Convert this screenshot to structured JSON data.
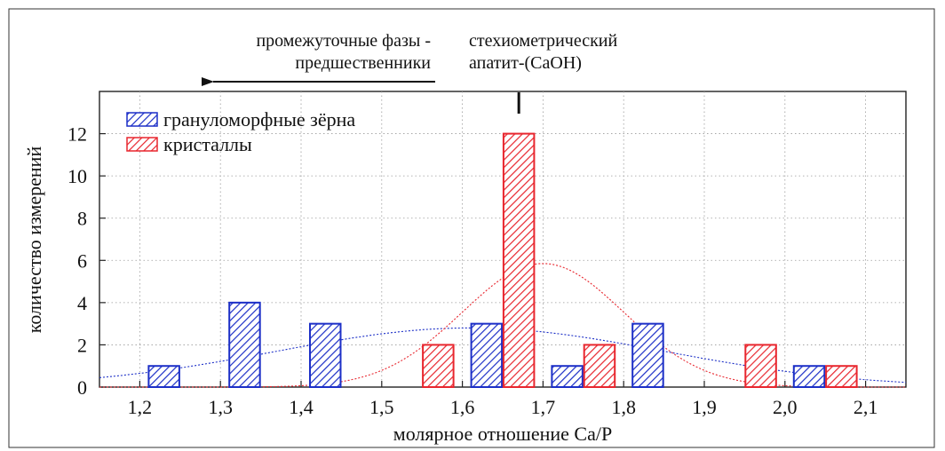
{
  "chart_data": {
    "type": "bar",
    "title": "",
    "xlabel": "молярное отношение Ca/P",
    "ylabel": "количество измерений",
    "xlim": [
      1.15,
      2.15
    ],
    "ylim": [
      0,
      14
    ],
    "x_ticks": [
      "1,2",
      "1,3",
      "1,4",
      "1,5",
      "1,6",
      "1,7",
      "1,8",
      "1,9",
      "2,0",
      "2,1"
    ],
    "y_ticks": [
      "0",
      "2",
      "4",
      "6",
      "8",
      "10",
      "12"
    ],
    "grid": true,
    "legend_position": "top-left",
    "series": [
      {
        "name": "грануломорфные зёрна",
        "color": "#1c2fc7",
        "pattern": "hatch",
        "bars": [
          {
            "x": 1.23,
            "value": 1
          },
          {
            "x": 1.33,
            "value": 4
          },
          {
            "x": 1.43,
            "value": 3
          },
          {
            "x": 1.63,
            "value": 3
          },
          {
            "x": 1.73,
            "value": 1
          },
          {
            "x": 1.83,
            "value": 3
          },
          {
            "x": 2.03,
            "value": 1
          }
        ],
        "fit_curve": {
          "mean": 1.61,
          "sd": 0.24,
          "peak": 2.8
        }
      },
      {
        "name": "кристаллы",
        "color": "#e8262e",
        "pattern": "hatch",
        "bars": [
          {
            "x": 1.57,
            "value": 2
          },
          {
            "x": 1.67,
            "value": 12
          },
          {
            "x": 1.77,
            "value": 2
          },
          {
            "x": 1.97,
            "value": 2
          },
          {
            "x": 2.07,
            "value": 1
          }
        ],
        "fit_curve": {
          "mean": 1.7,
          "sd": 0.1,
          "peak": 5.85
        }
      }
    ],
    "annotations": {
      "arrow_text_line1": "промежуточные фазы -",
      "arrow_text_line2": "предшественники",
      "marker_text_line1": "стехиометрический",
      "marker_text_line2": "апатит-(CaOH)",
      "marker_x": 1.67
    }
  }
}
